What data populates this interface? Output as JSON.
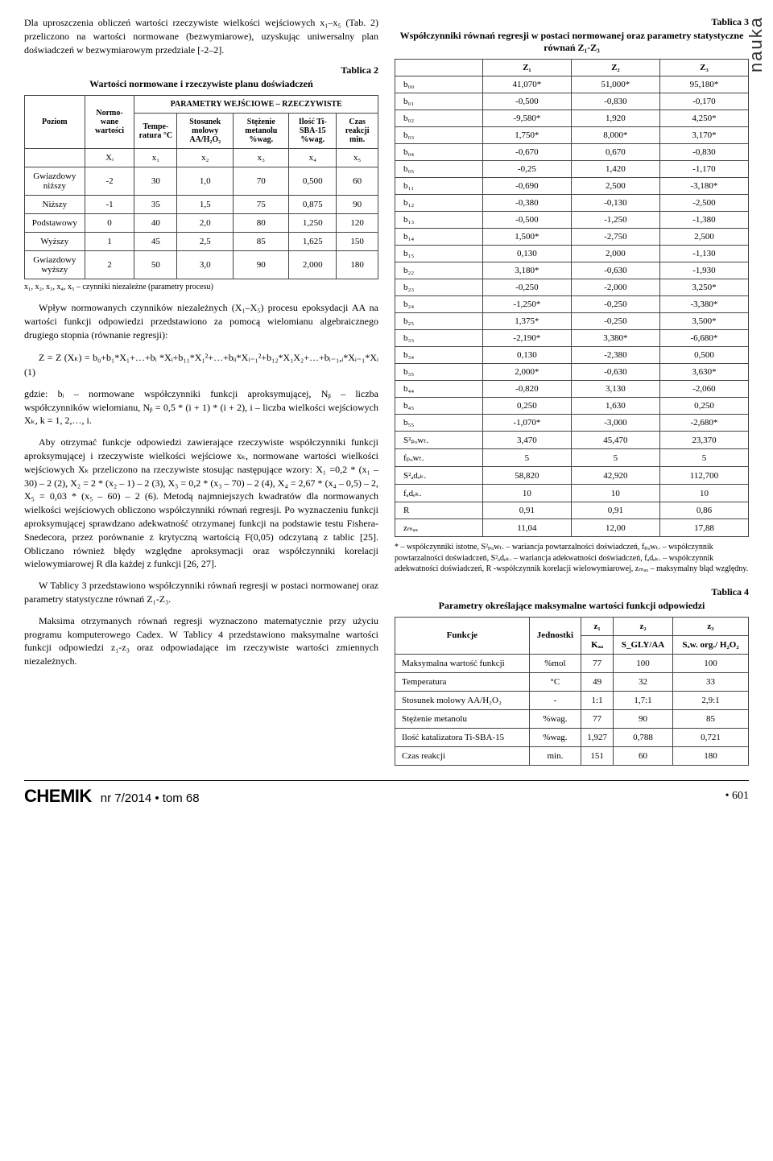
{
  "side_label": "nauka",
  "left": {
    "para1": "Dla uproszczenia obliczeń wartości rzeczywiste wielkości wejściowych x₁–x₅ (Tab. 2) przeliczono na wartości normowane (bezwymiarowe), uzyskując uniwersalny plan doświadczeń w bezwymiarowym przedziale [-2–2].",
    "tab2_label": "Tablica 2",
    "tab2_title": "Wartości normowane i rzeczywiste planu doświadczeń",
    "tab2_headers": {
      "poziom": "Poziom",
      "normowane": "Normo-wane wartości",
      "param_group": "PARAMETRY WEJŚCIOWE – RZECZYWISTE",
      "temp": "Tempe-ratura °C",
      "stos": "Stosunek molowy AA/H₂O₂",
      "stez": "Stężenie metanolu %wag.",
      "ilosc": "Ilość Ti-SBA-15 %wag.",
      "czas": "Czas reakcji min.",
      "xi": "Xᵢ",
      "x1": "x₁",
      "x2": "x₂",
      "x3": "x₃",
      "x4": "x₄",
      "x5": "x₅"
    },
    "tab2_rows": [
      {
        "label": "Gwiazdowy niższy",
        "xi": "-2",
        "x1": "30",
        "x2": "1,0",
        "x3": "70",
        "x4": "0,500",
        "x5": "60"
      },
      {
        "label": "Niższy",
        "xi": "-1",
        "x1": "35",
        "x2": "1,5",
        "x3": "75",
        "x4": "0,875",
        "x5": "90"
      },
      {
        "label": "Podstawowy",
        "xi": "0",
        "x1": "40",
        "x2": "2,0",
        "x3": "80",
        "x4": "1,250",
        "x5": "120"
      },
      {
        "label": "Wyższy",
        "xi": "1",
        "x1": "45",
        "x2": "2,5",
        "x3": "85",
        "x4": "1,625",
        "x5": "150"
      },
      {
        "label": "Gwiazdowy wyższy",
        "xi": "2",
        "x1": "50",
        "x2": "3,0",
        "x3": "90",
        "x4": "2,000",
        "x5": "180"
      }
    ],
    "tab2_note": "x₁, x₂, x₃, x₄, x₅ – czynniki niezależne (parametry procesu)",
    "para2": "Wpływ normowanych czynników niezależnych (X₁–X₅) procesu epoksydacji AA na wartości funkcji odpowiedzi przedstawiono za pomocą wielomianu algebraicznego drugiego stopnia (równanie regresji):",
    "eq": "Z = Z (Xₖ) = b₀+b₁*X₁+…+bᵢ *Xᵢ+b₁₁*X₁²+…+bᵢᵢ*Xᵢ₋₁²+b₁₂*X₁X₂+…+bᵢ₋₁,ᵢ*Xᵢ₋₁*Xᵢ (1)",
    "para3": "gdzie: bᵢ – normowane współczynniki funkcji aproksymującej, Nᵦ – liczba współczynników wielomianu, Nᵦ = 0,5 * (i + 1) * (i + 2), i – liczba wielkości wejściowych Xₖ, k = 1, 2,…, i.",
    "para4": "Aby otrzymać funkcje odpowiedzi zawierające rzeczywiste współczynniki funkcji aproksymującej i rzeczywiste wielkości wejściowe xₖ, normowane wartości wielkości wejściowych Xₖ przeliczono na rzeczywiste stosując następujące wzory: X₁ =0,2 * (x₁ – 30) – 2 (2), X₂ = 2 * (x₂ – 1) – 2 (3), X₃ = 0,2 * (x₃ – 70) – 2 (4), X₄ = 2,67 * (x₄ – 0,5) – 2, X₅ = 0,03 * (x₅ – 60) – 2 (6). Metodą najmniejszych kwadratów dla normowanych wielkości wejściowych obliczono współczynniki równań regresji. Po wyznaczeniu funkcji aproksymującej sprawdzano adekwatność otrzymanej funkcji na podstawie testu Fishera-Snedecora, przez porównanie z krytyczną wartością F(0,05) odczytaną z tablic [25]. Obliczano również błędy względne aproksymacji oraz współczynniki korelacji wielowymiarowej R dla każdej z funkcji [26, 27].",
    "para5": "W Tablicy 3 przedstawiono współczynniki równań regresji w postaci normowanej oraz parametry statystyczne równań Z₁-Z₃.",
    "para6": "Maksima otrzymanych równań regresji wyznaczono matematycznie przy użyciu programu komputerowego Cadex. W Tablicy 4 przedstawiono maksymalne wartości funkcji odpowiedzi z₁-z₃ oraz odpowiadające im rzeczywiste wartości zmiennych niezależnych."
  },
  "right": {
    "tab3_label": "Tablica 3",
    "tab3_title": "Współczynniki równań regresji w postaci normowanej oraz parametry statystyczne równań Z₁-Z₃",
    "tab3_headers": {
      "blank": "",
      "z1": "Z₁",
      "z2": "Z₂",
      "z3": "Z₃"
    },
    "tab3_rows": [
      {
        "k": "b₀₀",
        "z1": "41,070*",
        "z2": "51,000*",
        "z3": "95,180*"
      },
      {
        "k": "b₀₁",
        "z1": "-0,500",
        "z2": "-0,830",
        "z3": "-0,170"
      },
      {
        "k": "b₀₂",
        "z1": "-9,580*",
        "z2": "1,920",
        "z3": "4,250*"
      },
      {
        "k": "b₀₃",
        "z1": "1,750*",
        "z2": "8,000*",
        "z3": "3,170*"
      },
      {
        "k": "b₀₄",
        "z1": "-0,670",
        "z2": "0,670",
        "z3": "-0,830"
      },
      {
        "k": "b₀₅",
        "z1": "-0,25",
        "z2": "1,420",
        "z3": "-1,170"
      },
      {
        "k": "b₁₁",
        "z1": "-0,690",
        "z2": "2,500",
        "z3": "-3,180*"
      },
      {
        "k": "b₁₂",
        "z1": "-0,380",
        "z2": "-0,130",
        "z3": "-2,500"
      },
      {
        "k": "b₁₃",
        "z1": "-0,500",
        "z2": "-1,250",
        "z3": "-1,380"
      },
      {
        "k": "b₁₄",
        "z1": "1,500*",
        "z2": "-2,750",
        "z3": "2,500"
      },
      {
        "k": "b₁₅",
        "z1": "0,130",
        "z2": "2,000",
        "z3": "-1,130"
      },
      {
        "k": "b₂₂",
        "z1": "3,180*",
        "z2": "-0,630",
        "z3": "-1,930"
      },
      {
        "k": "b₂₃",
        "z1": "-0,250",
        "z2": "-2,000",
        "z3": "3,250*"
      },
      {
        "k": "b₂₄",
        "z1": "-1,250*",
        "z2": "-0,250",
        "z3": "-3,380*"
      },
      {
        "k": "b₂₅",
        "z1": "1,375*",
        "z2": "-0,250",
        "z3": "3,500*"
      },
      {
        "k": "b₃₃",
        "z1": "-2,190*",
        "z2": "3,380*",
        "z3": "-6,680*"
      },
      {
        "k": "b₃₄",
        "z1": "0,130",
        "z2": "-2,380",
        "z3": "0,500"
      },
      {
        "k": "b₃₅",
        "z1": "2,000*",
        "z2": "-0,630",
        "z3": "3,630*"
      },
      {
        "k": "b₄₄",
        "z1": "-0,820",
        "z2": "3,130",
        "z3": "-2,060"
      },
      {
        "k": "b₄₅",
        "z1": "0,250",
        "z2": "1,630",
        "z3": "0,250"
      },
      {
        "k": "b₅₅",
        "z1": "-1,070*",
        "z2": "-3,000",
        "z3": "-2,680*"
      },
      {
        "k": "S²ₚₒwₜ.",
        "z1": "3,470",
        "z2": "45,470",
        "z3": "23,370"
      },
      {
        "k": "fₚₒwₜ.",
        "z1": "5",
        "z2": "5",
        "z3": "5"
      },
      {
        "k": "S²ₐdₑₖ.",
        "z1": "58,820",
        "z2": "42,920",
        "z3": "112,700"
      },
      {
        "k": "fₐdₑₖ.",
        "z1": "10",
        "z2": "10",
        "z3": "10"
      },
      {
        "k": "R",
        "z1": "0,91",
        "z2": "0,91",
        "z3": "0,86"
      },
      {
        "k": "zₘₐₓ",
        "z1": "11,04",
        "z2": "12,00",
        "z3": "17,88"
      }
    ],
    "tab3_note": "* – współczynniki istotne, S²ₚₒwₜ. – wariancja powtarzalności doświadczeń, fₚₒwₜ. – współczynnik powtarzalności doświadczeń, S²ₐdₑₖ. – wariancja adekwatności doświadczeń, fₐdₑₖ. – współczynnik adekwatności doświadczeń, R -współczynnik korelacji wielowymiarowej, zₘₐₓ – maksymalny błąd względny.",
    "tab4_label": "Tablica 4",
    "tab4_title": "Parametry określające maksymalne wartości funkcji odpowiedzi",
    "tab4_headers": {
      "funkcje": "Funkcje",
      "jednostki": "Jednostki",
      "z1": "z₁",
      "z2": "z₂",
      "z3": "z₃",
      "kaa": "Kₐₐ",
      "sgly": "S_GLY/AA",
      "szw": "Sₓw. org./ H₂O₂"
    },
    "tab4_rows": [
      {
        "f": "Maksymalna wartość funkcji",
        "u": "%mol",
        "z1": "77",
        "z2": "100",
        "z3": "100"
      },
      {
        "f": "Temperatura",
        "u": "°C",
        "z1": "49",
        "z2": "32",
        "z3": "33"
      },
      {
        "f": "Stosunek molowy AA/H₂O₂",
        "u": "-",
        "z1": "1:1",
        "z2": "1,7:1",
        "z3": "2,9:1"
      },
      {
        "f": "Stężenie metanolu",
        "u": "%wag.",
        "z1": "77",
        "z2": "90",
        "z3": "85"
      },
      {
        "f": "Ilość katalizatora Ti-SBA-15",
        "u": "%wag.",
        "z1": "1,927",
        "z2": "0,788",
        "z3": "0,721"
      },
      {
        "f": "Czas reakcji",
        "u": "min.",
        "z1": "151",
        "z2": "60",
        "z3": "180"
      }
    ]
  },
  "footer": {
    "brand": "CHEMIK",
    "issue": "nr 7/2014 • tom 68",
    "page": "• 601"
  }
}
